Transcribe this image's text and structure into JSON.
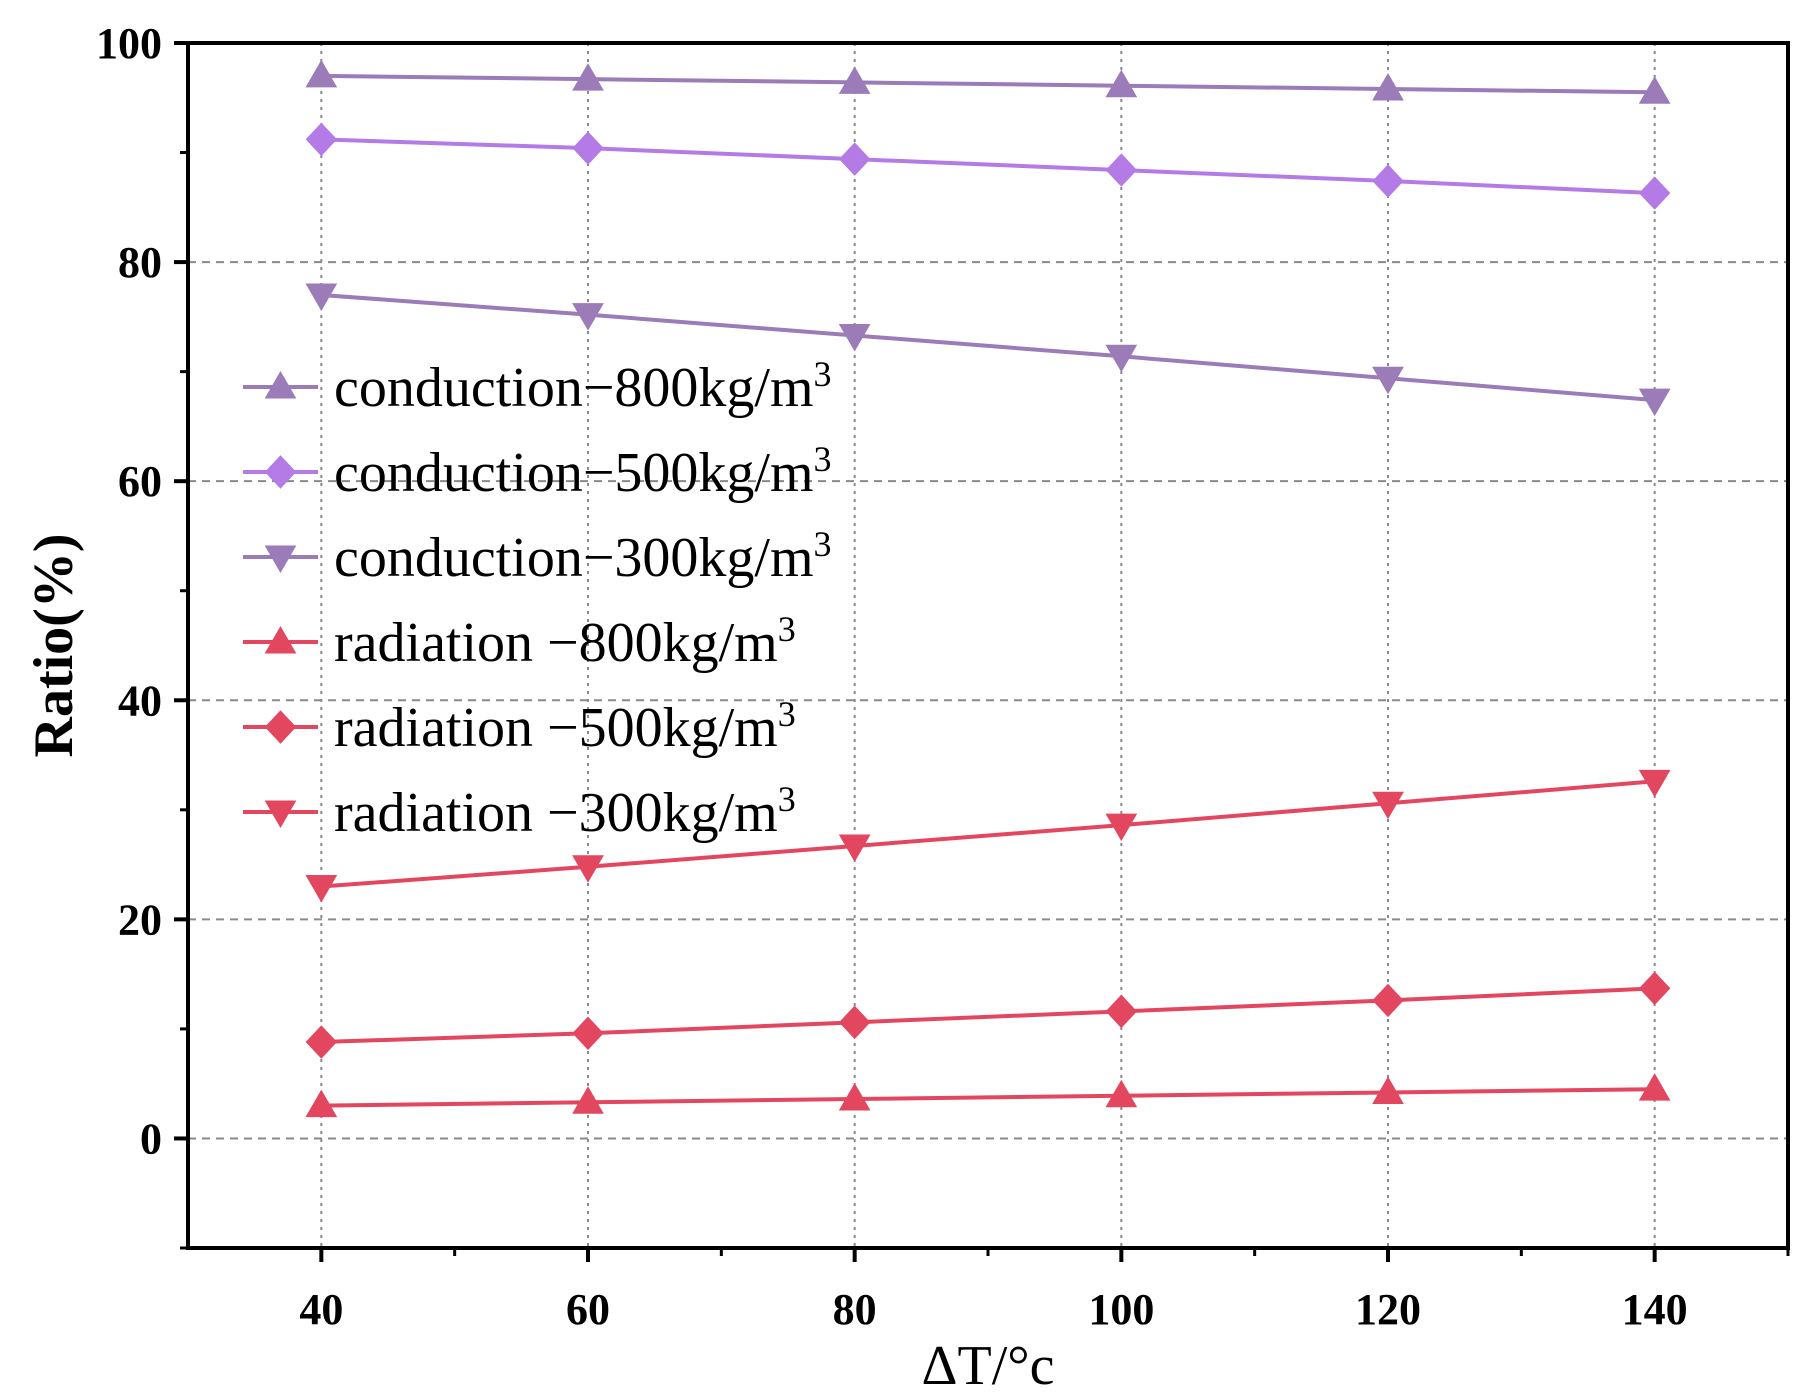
{
  "chart_data": {
    "type": "line",
    "title": "",
    "xlabel": "ΔT/°c",
    "ylabel": "Ratio(%)",
    "xlim": [
      30,
      150
    ],
    "ylim": [
      -10,
      100
    ],
    "x": [
      40,
      60,
      80,
      100,
      120,
      140
    ],
    "xticks": [
      "40",
      "60",
      "80",
      "100",
      "120",
      "140"
    ],
    "yticks": [
      "0",
      "20",
      "40",
      "60",
      "80",
      "100"
    ],
    "grid": true,
    "legend_position": "center-left",
    "series": [
      {
        "name": "conduction−800kg/m",
        "sup": "3",
        "marker": "triangle-up",
        "color": "#9b7bb8",
        "values": [
          97.0,
          96.7,
          96.4,
          96.1,
          95.8,
          95.5
        ]
      },
      {
        "name": "conduction−500kg/m",
        "sup": "3",
        "marker": "diamond",
        "color": "#b47ae6",
        "values": [
          91.2,
          90.4,
          89.4,
          88.4,
          87.4,
          86.3
        ]
      },
      {
        "name": "conduction−300kg/m",
        "sup": "3",
        "marker": "triangle-down",
        "color": "#9b7bb8",
        "values": [
          77.0,
          75.2,
          73.3,
          71.4,
          69.4,
          67.4
        ]
      },
      {
        "name": "radiation −800kg/m",
        "sup": "3",
        "marker": "triangle-up",
        "color": "#e3475f",
        "values": [
          3.0,
          3.3,
          3.6,
          3.9,
          4.2,
          4.5
        ]
      },
      {
        "name": "radiation −500kg/m",
        "sup": "3",
        "marker": "diamond",
        "color": "#e3475f",
        "values": [
          8.8,
          9.6,
          10.6,
          11.6,
          12.6,
          13.7
        ]
      },
      {
        "name": "radiation −300kg/m",
        "sup": "3",
        "marker": "triangle-down",
        "color": "#e3475f",
        "values": [
          23.0,
          24.8,
          26.7,
          28.6,
          30.6,
          32.6
        ]
      }
    ]
  }
}
